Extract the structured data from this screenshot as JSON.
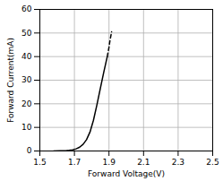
{
  "chart_data": {
    "type": "line",
    "xlabel": "Forward Voltage(V)",
    "ylabel": "Forward Current(mA)",
    "xlim": [
      1.5,
      2.5
    ],
    "ylim": [
      0,
      60
    ],
    "xticks": [
      1.5,
      1.7,
      1.9,
      2.1,
      2.3,
      2.5
    ],
    "yticks": [
      0,
      10,
      20,
      30,
      40,
      50,
      60
    ],
    "grid": true,
    "series": [
      {
        "color": "#000000",
        "line_style": "solid",
        "x": [
          1.58,
          1.62,
          1.65,
          1.67,
          1.69,
          1.71,
          1.73,
          1.75,
          1.77,
          1.79,
          1.81,
          1.83,
          1.85,
          1.87,
          1.89
        ],
        "values": [
          0.0,
          0.05,
          0.12,
          0.25,
          0.5,
          0.9,
          1.6,
          2.8,
          4.8,
          8.0,
          13.0,
          19.5,
          26.5,
          33.5,
          40.0
        ]
      },
      {
        "color": "#000000",
        "line_style": "dashed",
        "x": [
          1.89,
          1.9,
          1.905,
          1.91,
          1.915
        ],
        "values": [
          40.0,
          44.0,
          46.5,
          48.5,
          50.5
        ]
      }
    ]
  }
}
